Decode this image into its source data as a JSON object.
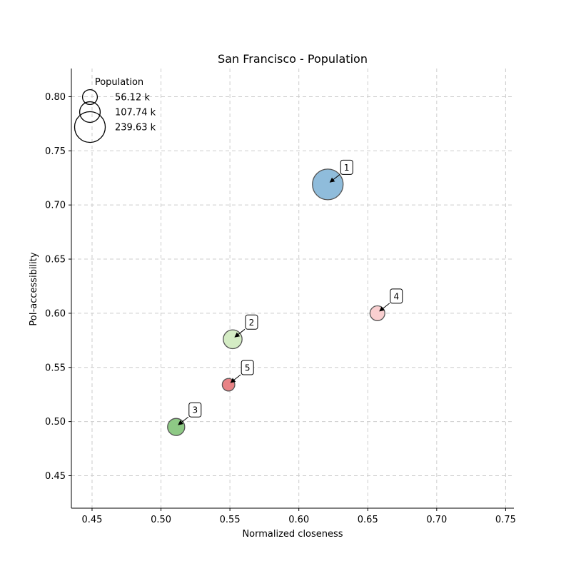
{
  "chart_data": {
    "type": "scatter",
    "title": "San Francisco - Population",
    "xlabel": "Normalized closeness",
    "ylabel": "PoI-accessibility",
    "xlim": [
      0.435,
      0.756
    ],
    "ylim": [
      0.42,
      0.826
    ],
    "xticks": [
      "0.45",
      "0.50",
      "0.55",
      "0.60",
      "0.65",
      "0.70",
      "0.75"
    ],
    "xtick_values": [
      0.45,
      0.5,
      0.55,
      0.6,
      0.65,
      0.7,
      0.75
    ],
    "yticks": [
      "0.45",
      "0.50",
      "0.55",
      "0.60",
      "0.65",
      "0.70",
      "0.75",
      "0.80"
    ],
    "ytick_values": [
      0.45,
      0.5,
      0.55,
      0.6,
      0.65,
      0.7,
      0.75,
      0.8
    ],
    "grid": true,
    "points": [
      {
        "label": "1",
        "x": 0.621,
        "y": 0.719,
        "population_k": 239.63,
        "color": "#8fbcdb"
      },
      {
        "label": "2",
        "x": 0.552,
        "y": 0.576,
        "population_k": 90.0,
        "color": "#d4ecc4"
      },
      {
        "label": "3",
        "x": 0.511,
        "y": 0.495,
        "population_k": 75.0,
        "color": "#8ec985"
      },
      {
        "label": "4",
        "x": 0.657,
        "y": 0.6,
        "population_k": 56.12,
        "color": "#f9cfd0"
      },
      {
        "label": "5",
        "x": 0.549,
        "y": 0.534,
        "population_k": 40.0,
        "color": "#e88386"
      }
    ],
    "legend": {
      "title": "Population",
      "placement": "top-left",
      "entries": [
        {
          "label": "56.12 k",
          "population_k": 56.12
        },
        {
          "label": "107.74 k",
          "population_k": 107.74
        },
        {
          "label": "239.63 k",
          "population_k": 239.63
        }
      ]
    }
  }
}
